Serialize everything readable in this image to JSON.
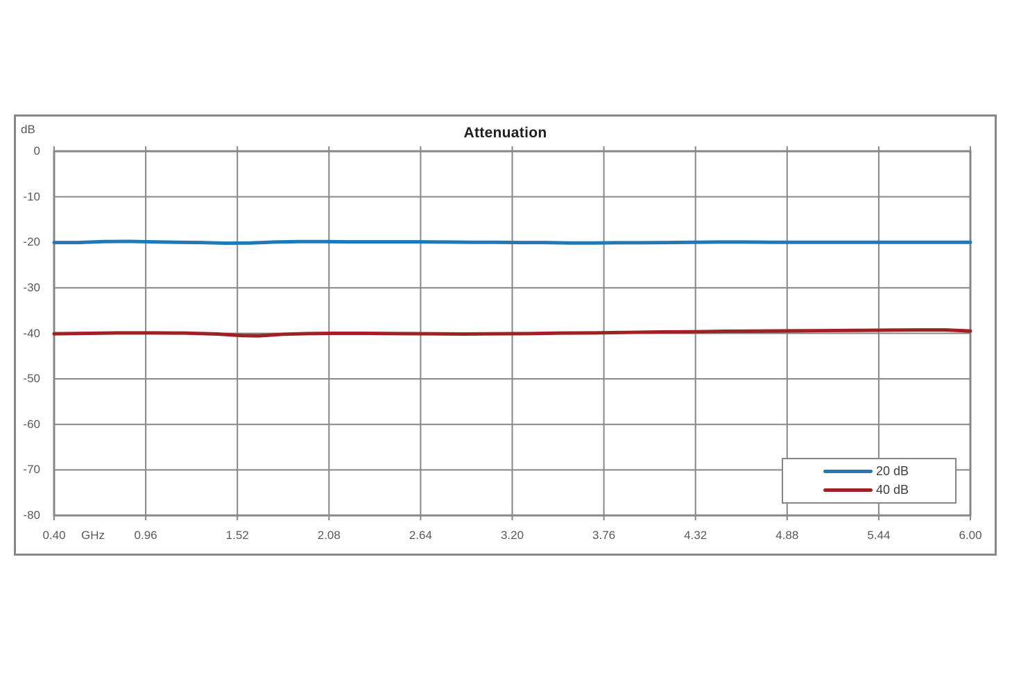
{
  "chart_data": {
    "type": "line",
    "title": "Attenuation",
    "y_unit_label": "dB",
    "x_unit_label": "GHz",
    "xlim": [
      0.4,
      6.0
    ],
    "ylim": [
      -80,
      0
    ],
    "grid": true,
    "legend_position": "inside-bottom-right",
    "x_ticks": [
      {
        "label": "0.40",
        "value": 0.4
      },
      {
        "label": "0.96",
        "value": 0.96
      },
      {
        "label": "1.52",
        "value": 1.52
      },
      {
        "label": "2.08",
        "value": 2.08
      },
      {
        "label": "2.64",
        "value": 2.64
      },
      {
        "label": "3.20",
        "value": 3.2
      },
      {
        "label": "3.76",
        "value": 3.76
      },
      {
        "label": "4.32",
        "value": 4.32
      },
      {
        "label": "4.88",
        "value": 4.88
      },
      {
        "label": "5.44",
        "value": 5.44
      },
      {
        "label": "6.00",
        "value": 6.0
      }
    ],
    "y_ticks": [
      {
        "label": "0",
        "value": 0
      },
      {
        "label": "-10",
        "value": -10
      },
      {
        "label": "-20",
        "value": -20
      },
      {
        "label": "-30",
        "value": -30
      },
      {
        "label": "-40",
        "value": -40
      },
      {
        "label": "-50",
        "value": -50
      },
      {
        "label": "-60",
        "value": -60
      },
      {
        "label": "-70",
        "value": -70
      },
      {
        "label": "-80",
        "value": -80
      }
    ],
    "series": [
      {
        "name": "20 dB",
        "color": "#1F78B8",
        "x": [
          0.4,
          0.55,
          0.7,
          0.85,
          1.0,
          1.15,
          1.3,
          1.45,
          1.6,
          1.75,
          1.9,
          2.05,
          2.2,
          2.35,
          2.5,
          2.65,
          2.8,
          2.95,
          3.1,
          3.25,
          3.4,
          3.55,
          3.7,
          3.85,
          4.0,
          4.15,
          4.3,
          4.45,
          4.6,
          4.8,
          5.0,
          5.2,
          5.4,
          5.6,
          5.8,
          6.0
        ],
        "y": [
          -20.05,
          -20.05,
          -19.85,
          -19.8,
          -19.9,
          -20.0,
          -20.05,
          -20.2,
          -20.15,
          -19.95,
          -19.85,
          -19.85,
          -19.9,
          -19.9,
          -19.9,
          -19.9,
          -19.95,
          -20.0,
          -20.0,
          -20.05,
          -20.05,
          -20.15,
          -20.15,
          -20.1,
          -20.1,
          -20.05,
          -20.0,
          -19.95,
          -19.95,
          -20.0,
          -20.0,
          -20.0,
          -20.0,
          -20.0,
          -20.0,
          -20.0
        ]
      },
      {
        "name": "40 dB",
        "color": "#9E2123",
        "x": [
          0.4,
          0.6,
          0.8,
          1.0,
          1.2,
          1.4,
          1.55,
          1.65,
          1.8,
          1.95,
          2.1,
          2.3,
          2.5,
          2.7,
          2.9,
          3.1,
          3.3,
          3.5,
          3.7,
          3.9,
          4.1,
          4.3,
          4.5,
          4.7,
          4.9,
          5.1,
          5.3,
          5.5,
          5.7,
          5.85,
          6.0
        ],
        "y": [
          -40.1,
          -40.0,
          -39.9,
          -39.9,
          -39.95,
          -40.15,
          -40.5,
          -40.55,
          -40.2,
          -40.05,
          -40.0,
          -40.0,
          -40.05,
          -40.1,
          -40.15,
          -40.1,
          -40.05,
          -39.95,
          -39.9,
          -39.8,
          -39.7,
          -39.65,
          -39.55,
          -39.5,
          -39.45,
          -39.4,
          -39.35,
          -39.3,
          -39.25,
          -39.25,
          -39.5
        ]
      }
    ],
    "colors": {
      "background": "#FFFFFF",
      "frame": "#878787",
      "grid": "#878787",
      "tick_label": "#595959",
      "title": "#1F1F1F",
      "legend_text": "#404040"
    }
  }
}
